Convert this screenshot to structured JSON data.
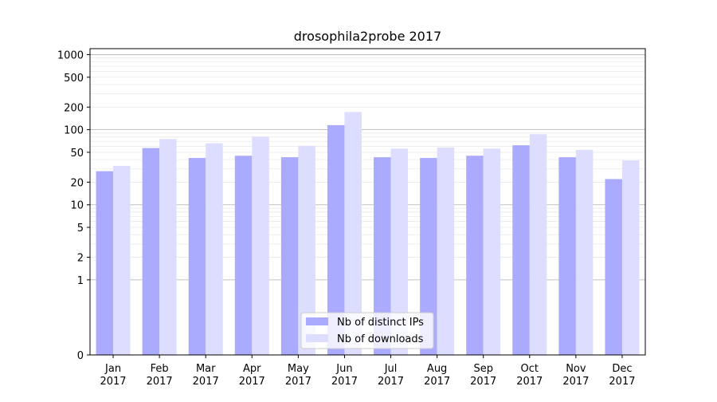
{
  "chart_data": {
    "type": "bar",
    "title": "drosophila2probe 2017",
    "xlabel": "",
    "ylabel": "",
    "yscale": "symlog",
    "ylim": [
      0,
      1200
    ],
    "grid": true,
    "legend_position": "bottom-center",
    "categories": [
      "Jan\n2017",
      "Feb\n2017",
      "Mar\n2017",
      "Apr\n2017",
      "May\n2017",
      "Jun\n2017",
      "Jul\n2017",
      "Aug\n2017",
      "Sep\n2017",
      "Oct\n2017",
      "Nov\n2017",
      "Dec\n2017"
    ],
    "yticks": [
      0,
      1,
      2,
      5,
      10,
      20,
      50,
      100,
      200,
      500,
      1000
    ],
    "ytick_labels": [
      "0",
      "1",
      "2",
      "5",
      "10",
      "20",
      "50",
      "100",
      "200",
      "500",
      "1000"
    ],
    "series": [
      {
        "name": "Nb of distinct IPs",
        "color": "#aaaaff",
        "values": [
          28,
          57,
          42,
          45,
          43,
          115,
          43,
          42,
          45,
          62,
          43,
          22
        ]
      },
      {
        "name": "Nb of downloads",
        "color": "#ddddff",
        "values": [
          33,
          75,
          66,
          81,
          61,
          172,
          56,
          58,
          56,
          87,
          54,
          39
        ]
      }
    ]
  }
}
